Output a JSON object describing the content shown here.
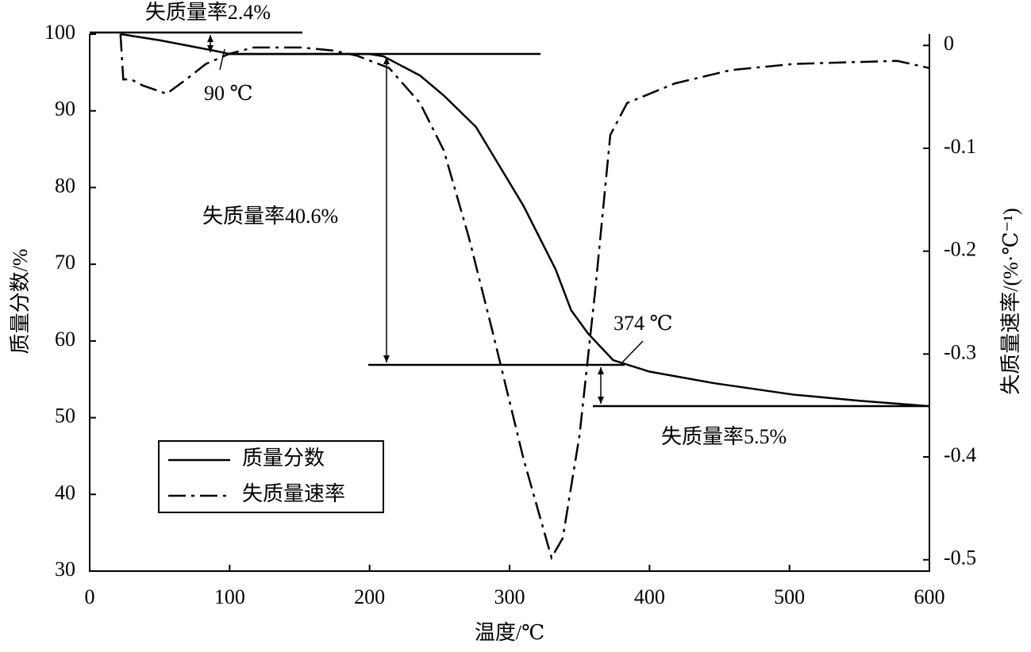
{
  "chart_data": {
    "type": "line",
    "xlabel": "温度/℃",
    "ylabel": "质量分数/%",
    "y2label": "失质量速率/(%·℃⁻¹)",
    "xlim": [
      0,
      600
    ],
    "xticks": [
      0,
      100,
      200,
      300,
      400,
      500,
      600
    ],
    "ylim": [
      30,
      100
    ],
    "yticks": [
      30,
      40,
      50,
      60,
      70,
      80,
      90,
      100
    ],
    "y2lim": [
      -0.511,
      0.011
    ],
    "y2ticks": [
      -0.5,
      -0.4,
      -0.3,
      -0.2,
      -0.1,
      0
    ],
    "grid": false,
    "legend": "lower left",
    "annotations": [
      "失质量率2.4%",
      "90 ℃",
      "失质量率40.6%",
      "374 ℃",
      "失质量率5.5%"
    ],
    "series": [
      {
        "name": "质量分数",
        "color": "#000000",
        "style": "solid",
        "x": [
          22,
          50,
          90,
          100,
          150,
          200,
          210,
          236,
          253,
          276,
          310,
          333,
          344,
          356,
          374,
          400,
          446,
          503,
          550,
          600
        ],
        "values": [
          100,
          99.2,
          97.8,
          97.4,
          97.4,
          97.4,
          97.1,
          94.6,
          92,
          87.9,
          77.6,
          69.3,
          64,
          61,
          57.5,
          56,
          54.5,
          53,
          52.2,
          51.5
        ]
      },
      {
        "name": "失质量速率",
        "color": "#000000",
        "style": "dashdot",
        "axis": "y2",
        "x": [
          22,
          24,
          29.5,
          38,
          55,
          69,
          83,
          100,
          117,
          151,
          174,
          191,
          214,
          236,
          253,
          271,
          288,
          310,
          330,
          338,
          350,
          361,
          372,
          384,
          418,
          458,
          503,
          577,
          600
        ],
        "values": [
          0.011,
          -0.033,
          -0.033,
          -0.039,
          -0.047,
          -0.033,
          -0.018,
          -0.008,
          -0.002,
          -0.002,
          -0.005,
          -0.01,
          -0.022,
          -0.056,
          -0.102,
          -0.187,
          -0.279,
          -0.402,
          -0.498,
          -0.479,
          -0.379,
          -0.241,
          -0.087,
          -0.056,
          -0.037,
          -0.024,
          -0.018,
          -0.015,
          -0.022
        ]
      }
    ]
  }
}
